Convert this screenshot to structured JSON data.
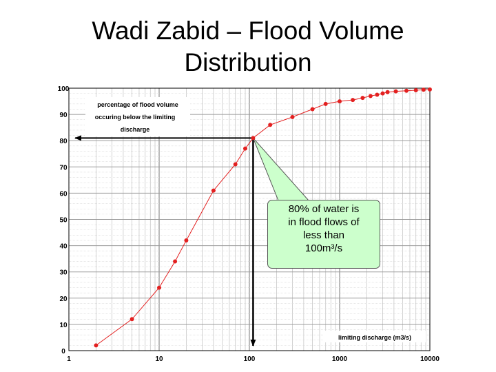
{
  "title_lines": [
    "Wadi Zabid – Flood Volume",
    "Distribution"
  ],
  "chart_data": {
    "type": "line",
    "title": "Wadi Zabid – Flood Volume Distribution",
    "xlabel": "limiting discharge (m3/s)",
    "ylabel_lines": [
      "percentage of flood volume",
      "occuring below the limiting",
      "discharge"
    ],
    "xscale": "log",
    "xlim": [
      1,
      10000
    ],
    "ylim": [
      0,
      100
    ],
    "x_tick_labels": [
      "1",
      "10",
      "100",
      "1000",
      "10000"
    ],
    "y_tick_labels": [
      "0",
      "10",
      "20",
      "30",
      "40",
      "50",
      "60",
      "70",
      "80",
      "90",
      "100"
    ],
    "grid": true,
    "series": [
      {
        "color": "#e32020",
        "x": [
          2,
          5,
          10,
          15,
          20,
          40,
          70,
          90,
          110,
          170,
          300,
          500,
          700,
          1000,
          1400,
          1800,
          2200,
          2600,
          3000,
          3400,
          4200,
          5500,
          7000,
          8500,
          10000
        ],
        "y": [
          2,
          12,
          24,
          34,
          42,
          61,
          71,
          77,
          81,
          86,
          89,
          92,
          94,
          95,
          95.5,
          96.3,
          97,
          97.5,
          98,
          98.5,
          98.8,
          99,
          99.2,
          99.4,
          99.5
        ]
      }
    ],
    "annotation": {
      "text_lines": [
        "80% of water is",
        "in flood flows of",
        "less than",
        "100m³/s"
      ],
      "x": 110,
      "y": 81,
      "fill": "#ccffcc"
    }
  }
}
